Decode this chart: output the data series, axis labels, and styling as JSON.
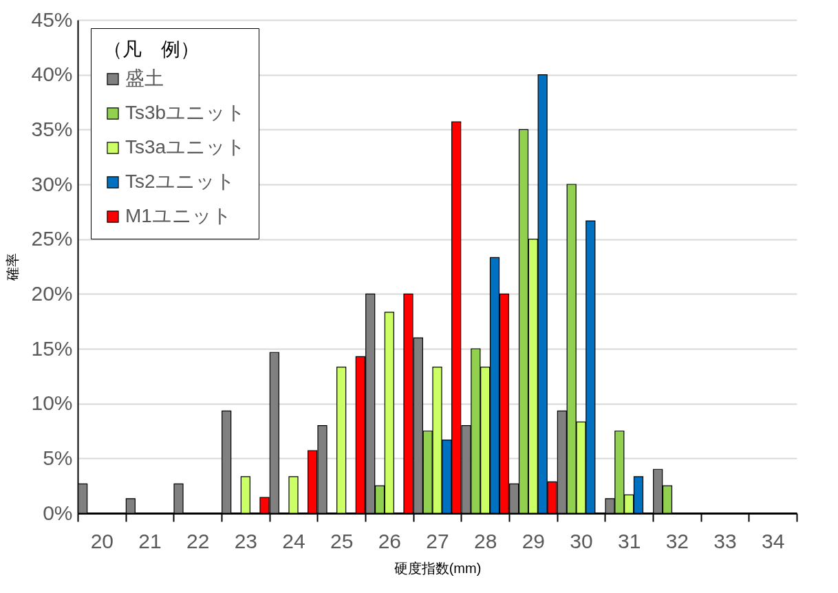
{
  "chart_data": {
    "type": "bar",
    "xlabel": "硬度指数(mm)",
    "ylabel": "確率",
    "legend_title": "（凡　例）",
    "categories": [
      "20",
      "21",
      "22",
      "23",
      "24",
      "25",
      "26",
      "27",
      "28",
      "29",
      "30",
      "31",
      "32",
      "33",
      "34"
    ],
    "series": [
      {
        "name": "盛土",
        "color": "#808080",
        "values": [
          2.67,
          1.33,
          2.67,
          9.33,
          14.67,
          8,
          20,
          16,
          8,
          2.67,
          9.33,
          1.33,
          4,
          null,
          null
        ]
      },
      {
        "name": "Ts3bユニット",
        "color": "#92d050",
        "values": [
          null,
          null,
          null,
          null,
          null,
          null,
          2.5,
          7.5,
          15,
          35,
          30,
          7.5,
          2.5,
          null,
          null
        ]
      },
      {
        "name": "Ts3aユニット",
        "color": "#ccff66",
        "values": [
          null,
          null,
          null,
          3.33,
          3.33,
          13.33,
          18.33,
          13.33,
          13.33,
          25,
          8.33,
          1.67,
          null,
          null,
          null
        ]
      },
      {
        "name": "Ts2ユニット",
        "color": "#0070c0",
        "values": [
          null,
          null,
          null,
          null,
          null,
          null,
          null,
          6.67,
          23.33,
          40,
          26.67,
          3.33,
          null,
          null,
          null
        ]
      },
      {
        "name": "M1ユニット",
        "color": "#ff0000",
        "values": [
          null,
          null,
          null,
          1.43,
          5.71,
          14.29,
          20,
          35.71,
          20,
          2.86,
          null,
          null,
          null,
          null,
          null
        ]
      }
    ],
    "ylim": [
      0,
      45
    ],
    "yticks": [
      {
        "value": 0,
        "label": "0%"
      },
      {
        "value": 5,
        "label": "5%"
      },
      {
        "value": 10,
        "label": "10%"
      },
      {
        "value": 15,
        "label": "15%"
      },
      {
        "value": 20,
        "label": "20%"
      },
      {
        "value": 25,
        "label": "25%"
      },
      {
        "value": 30,
        "label": "30%"
      },
      {
        "value": 35,
        "label": "35%"
      },
      {
        "value": 40,
        "label": "40%"
      },
      {
        "value": 45,
        "label": "45%"
      }
    ],
    "grid": "y",
    "legend": "top left"
  }
}
